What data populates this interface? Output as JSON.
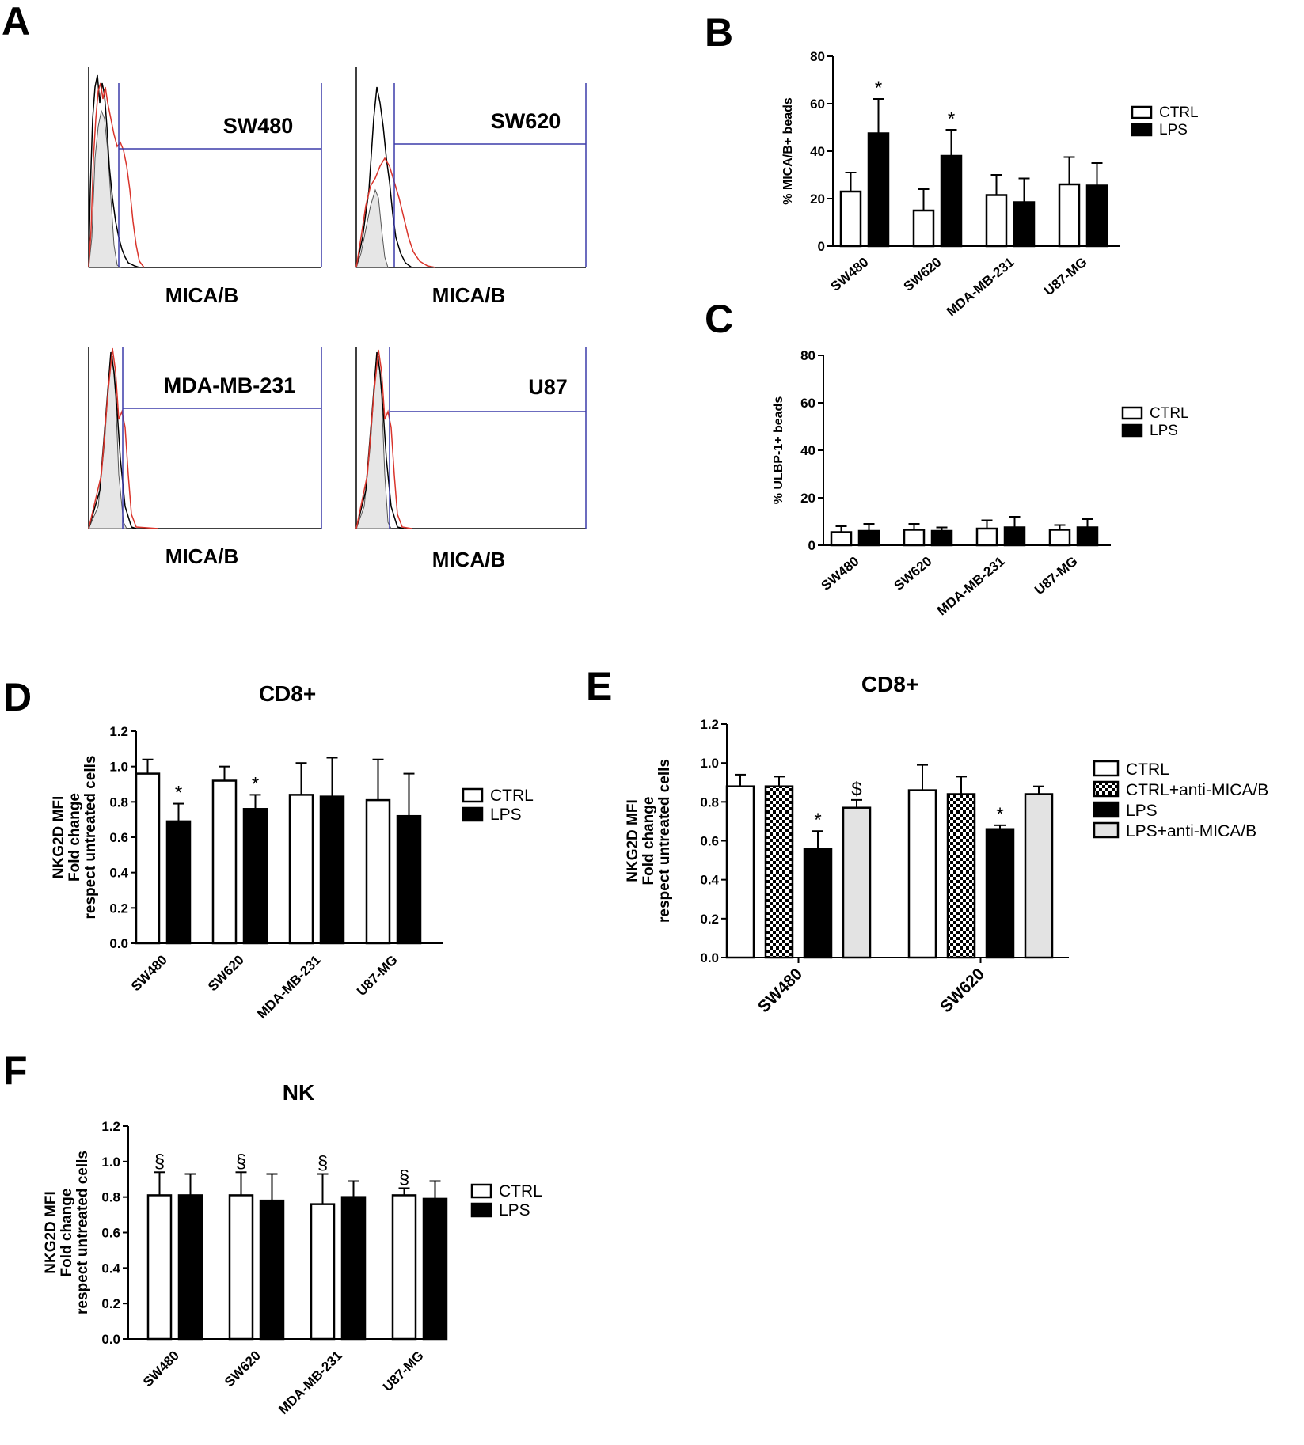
{
  "chart_data": [
    {
      "panel": "A",
      "type": "histogram",
      "histograms": [
        {
          "name": "SW480",
          "xlabel": "MICA/B"
        },
        {
          "name": "SW620",
          "xlabel": "MICA/B"
        },
        {
          "name": "MDA-MB-231",
          "xlabel": "MICA/B"
        },
        {
          "name": "U87",
          "xlabel": "MICA/B"
        }
      ],
      "colors": {
        "control": "#000000",
        "lps": "#d9342b",
        "isotype_fill": "#e6e6e6",
        "gate": "#3c3caa"
      }
    },
    {
      "panel": "B",
      "type": "bar",
      "title": "",
      "ylabel": "% MICA/B+ beads",
      "ylim": [
        0,
        80
      ],
      "yticks": [
        0,
        20,
        40,
        60,
        80
      ],
      "categories": [
        "SW480",
        "SW620",
        "MDA-MB-231",
        "U87-MG"
      ],
      "series": [
        {
          "name": "CTRL",
          "style": "white",
          "values": [
            23,
            15,
            21.5,
            26
          ],
          "errors": [
            8,
            9,
            8.5,
            11.5
          ]
        },
        {
          "name": "LPS",
          "style": "black",
          "values": [
            47.5,
            38,
            18.5,
            25.5
          ],
          "errors": [
            14.5,
            11,
            10,
            9.5
          ]
        }
      ],
      "annotations": [
        {
          "category": 0,
          "series": 1,
          "text": "*"
        },
        {
          "category": 1,
          "series": 1,
          "text": "*"
        }
      ]
    },
    {
      "panel": "C",
      "type": "bar",
      "title": "",
      "ylabel": "% ULBP-1+ beads",
      "ylim": [
        0,
        80
      ],
      "yticks": [
        0,
        20,
        40,
        60,
        80
      ],
      "categories": [
        "SW480",
        "SW620",
        "MDA-MB-231",
        "U87-MG"
      ],
      "series": [
        {
          "name": "CTRL",
          "style": "white",
          "values": [
            5.5,
            6.5,
            7,
            6.5
          ],
          "errors": [
            2.5,
            2.5,
            3.5,
            2
          ]
        },
        {
          "name": "LPS",
          "style": "black",
          "values": [
            6,
            6,
            7.5,
            7.5
          ],
          "errors": [
            3,
            1.5,
            4.5,
            3.5
          ]
        }
      ],
      "annotations": []
    },
    {
      "panel": "D",
      "type": "bar",
      "title": "CD8+",
      "ylabel": [
        "NKG2D MFI",
        "Fold change",
        "respect untreated cells"
      ],
      "ylim": [
        0,
        1.2
      ],
      "yticks": [
        "0.0",
        "0.2",
        "0.4",
        "0.6",
        "0.8",
        "1.0",
        "1.2"
      ],
      "categories": [
        "SW480",
        "SW620",
        "MDA-MB-231",
        "U87-MG"
      ],
      "series": [
        {
          "name": "CTRL",
          "style": "white",
          "values": [
            0.96,
            0.92,
            0.84,
            0.81
          ],
          "errors": [
            0.08,
            0.08,
            0.18,
            0.23
          ]
        },
        {
          "name": "LPS",
          "style": "black",
          "values": [
            0.69,
            0.76,
            0.83,
            0.72
          ],
          "errors": [
            0.1,
            0.08,
            0.22,
            0.24
          ]
        }
      ],
      "annotations": [
        {
          "category": 0,
          "series": 1,
          "text": "*"
        },
        {
          "category": 1,
          "series": 1,
          "text": "*"
        }
      ]
    },
    {
      "panel": "E",
      "type": "bar",
      "title": "CD8+",
      "ylabel": [
        "NKG2D MFI",
        "Fold change",
        "respect untreated cells"
      ],
      "ylim": [
        0,
        1.2
      ],
      "yticks": [
        "0.0",
        "0.2",
        "0.4",
        "0.6",
        "0.8",
        "1.0",
        "1.2"
      ],
      "categories": [
        "SW480",
        "SW620"
      ],
      "series": [
        {
          "name": "CTRL",
          "style": "white",
          "values": [
            0.88,
            0.86
          ],
          "errors": [
            0.06,
            0.13
          ]
        },
        {
          "name": "CTRL+anti-MICA/B",
          "style": "checker",
          "values": [
            0.88,
            0.84
          ],
          "errors": [
            0.05,
            0.09
          ]
        },
        {
          "name": "LPS",
          "style": "black",
          "values": [
            0.56,
            0.66
          ],
          "errors": [
            0.09,
            0.02
          ]
        },
        {
          "name": "LPS+anti-MICA/B",
          "style": "gray",
          "values": [
            0.77,
            0.84
          ],
          "errors": [
            0.04,
            0.04
          ]
        }
      ],
      "annotations": [
        {
          "category": 0,
          "series": 2,
          "text": "*"
        },
        {
          "category": 0,
          "series": 3,
          "text": "$"
        },
        {
          "category": 1,
          "series": 2,
          "text": "*"
        }
      ]
    },
    {
      "panel": "F",
      "type": "bar",
      "title": "NK",
      "ylabel": [
        "NKG2D MFI",
        "Fold change",
        "respect untreated cells"
      ],
      "ylim": [
        0,
        1.2
      ],
      "yticks": [
        "0.0",
        "0.2",
        "0.4",
        "0.6",
        "0.8",
        "1.0",
        "1.2"
      ],
      "categories": [
        "SW480",
        "SW620",
        "MDA-MB-231",
        "U87-MG"
      ],
      "series": [
        {
          "name": "CTRL",
          "style": "white",
          "values": [
            0.81,
            0.81,
            0.76,
            0.81
          ],
          "errors": [
            0.13,
            0.13,
            0.17,
            0.04
          ]
        },
        {
          "name": "LPS",
          "style": "black",
          "values": [
            0.81,
            0.78,
            0.8,
            0.79
          ],
          "errors": [
            0.12,
            0.15,
            0.09,
            0.1
          ]
        }
      ],
      "annotations": [
        {
          "category": 0,
          "series": 0,
          "text": "§"
        },
        {
          "category": 1,
          "series": 0,
          "text": "§"
        },
        {
          "category": 2,
          "series": 0,
          "text": "§"
        },
        {
          "category": 3,
          "series": 0,
          "text": "§"
        }
      ]
    }
  ]
}
